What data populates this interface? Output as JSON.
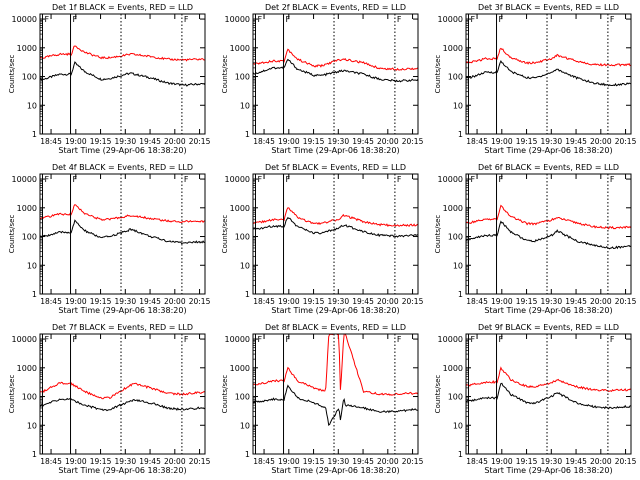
{
  "figure": {
    "xtick_labels": [
      "18:45",
      "19:00",
      "19:15",
      "19:30",
      "19:45",
      "20:00",
      "20:15"
    ],
    "ytick_labels": [
      "1",
      "10",
      "100",
      "1000",
      "10000"
    ],
    "ylabel": "Counts/sec",
    "xlabel": "Start Time (29-Apr-06 18:38:20)",
    "marker_labels": [
      "F",
      "F",
      "F"
    ],
    "colors": {
      "events": "#000000",
      "lld": "#ff0000",
      "axes": "#000000"
    }
  },
  "chart_data": [
    {
      "type": "line",
      "title": "Det 1f BLACK = Events, RED = LLD",
      "xlabel": "Start Time (29-Apr-06 18:38:20)",
      "ylabel": "Counts/sec",
      "yscale": "log",
      "ylim": [
        1,
        15000
      ],
      "xlim": [
        "18:38",
        "20:18"
      ],
      "x": [
        "18:40",
        "18:50",
        "18:57",
        "18:59",
        "19:05",
        "19:15",
        "19:20",
        "19:30",
        "19:33",
        "19:45",
        "19:55",
        "20:05",
        "20:15"
      ],
      "series": [
        {
          "name": "BLACK = Events",
          "values": [
            80,
            120,
            120,
            300,
            150,
            80,
            85,
            120,
            130,
            90,
            60,
            50,
            55
          ]
        },
        {
          "name": "RED = LLD",
          "values": [
            450,
            600,
            600,
            1200,
            700,
            450,
            450,
            550,
            600,
            500,
            400,
            380,
            400
          ]
        }
      ]
    },
    {
      "type": "line",
      "title": "Det 2f BLACK = Events, RED = LLD",
      "xlabel": "Start Time (29-Apr-06 18:38:20)",
      "ylabel": "Counts/sec",
      "yscale": "log",
      "ylim": [
        1,
        15000
      ],
      "xlim": [
        "18:38",
        "20:18"
      ],
      "x": [
        "18:40",
        "18:50",
        "18:57",
        "18:59",
        "19:05",
        "19:15",
        "19:20",
        "19:30",
        "19:33",
        "19:45",
        "19:55",
        "20:05",
        "20:15"
      ],
      "series": [
        {
          "name": "BLACK = Events",
          "values": [
            130,
            200,
            200,
            400,
            180,
            110,
            110,
            150,
            160,
            120,
            80,
            70,
            75
          ]
        },
        {
          "name": "RED = LLD",
          "values": [
            280,
            350,
            350,
            900,
            400,
            230,
            240,
            380,
            400,
            300,
            190,
            180,
            190
          ]
        }
      ]
    },
    {
      "type": "line",
      "title": "Det 3f BLACK = Events, RED = LLD",
      "xlabel": "Start Time (29-Apr-06 18:38:20)",
      "ylabel": "Counts/sec",
      "yscale": "log",
      "ylim": [
        1,
        15000
      ],
      "xlim": [
        "18:38",
        "20:18"
      ],
      "x": [
        "18:40",
        "18:50",
        "18:57",
        "18:59",
        "19:05",
        "19:15",
        "19:20",
        "19:30",
        "19:33",
        "19:45",
        "19:55",
        "20:05",
        "20:15"
      ],
      "series": [
        {
          "name": "BLACK = Events",
          "values": [
            90,
            140,
            140,
            350,
            150,
            90,
            90,
            140,
            180,
            90,
            60,
            50,
            55
          ]
        },
        {
          "name": "RED = LLD",
          "values": [
            300,
            420,
            420,
            1000,
            450,
            300,
            300,
            420,
            550,
            350,
            260,
            250,
            260
          ]
        }
      ]
    },
    {
      "type": "line",
      "title": "Det 4f BLACK = Events, RED = LLD",
      "xlabel": "Start Time (29-Apr-06 18:38:20)",
      "ylabel": "Counts/sec",
      "yscale": "log",
      "ylim": [
        1,
        15000
      ],
      "xlim": [
        "18:38",
        "20:18"
      ],
      "x": [
        "18:40",
        "18:50",
        "18:57",
        "18:59",
        "19:05",
        "19:15",
        "19:20",
        "19:30",
        "19:33",
        "19:45",
        "19:55",
        "20:05",
        "20:15"
      ],
      "series": [
        {
          "name": "BLACK = Events",
          "values": [
            100,
            140,
            140,
            350,
            160,
            90,
            100,
            150,
            180,
            100,
            70,
            60,
            65
          ]
        },
        {
          "name": "RED = LLD",
          "values": [
            450,
            600,
            600,
            1300,
            650,
            380,
            400,
            500,
            550,
            420,
            350,
            330,
            340
          ]
        }
      ]
    },
    {
      "type": "line",
      "title": "Det 5f BLACK = Events, RED = LLD",
      "xlabel": "Start Time (29-Apr-06 18:38:20)",
      "ylabel": "Counts/sec",
      "yscale": "log",
      "ylim": [
        1,
        15000
      ],
      "xlim": [
        "18:38",
        "20:18"
      ],
      "x": [
        "18:40",
        "18:50",
        "18:57",
        "18:59",
        "19:05",
        "19:15",
        "19:20",
        "19:30",
        "19:33",
        "19:45",
        "19:55",
        "20:05",
        "20:15"
      ],
      "series": [
        {
          "name": "BLACK = Events",
          "values": [
            180,
            230,
            230,
            500,
            220,
            130,
            130,
            200,
            250,
            150,
            110,
            100,
            110
          ]
        },
        {
          "name": "RED = LLD",
          "values": [
            300,
            380,
            380,
            1100,
            450,
            280,
            290,
            400,
            550,
            330,
            260,
            240,
            250
          ]
        }
      ]
    },
    {
      "type": "line",
      "title": "Det 6f BLACK = Events, RED = LLD",
      "xlabel": "Start Time (29-Apr-06 18:38:20)",
      "ylabel": "Counts/sec",
      "yscale": "log",
      "ylim": [
        1,
        15000
      ],
      "xlim": [
        "18:38",
        "20:18"
      ],
      "x": [
        "18:40",
        "18:50",
        "18:57",
        "18:59",
        "19:05",
        "19:15",
        "19:20",
        "19:30",
        "19:33",
        "19:45",
        "19:55",
        "20:05",
        "20:15"
      ],
      "series": [
        {
          "name": "BLACK = Events",
          "values": [
            80,
            110,
            110,
            350,
            150,
            70,
            70,
            110,
            160,
            70,
            50,
            40,
            45
          ]
        },
        {
          "name": "RED = LLD",
          "values": [
            300,
            400,
            400,
            1200,
            500,
            280,
            280,
            380,
            450,
            300,
            220,
            200,
            210
          ]
        }
      ]
    },
    {
      "type": "line",
      "title": "Det 7f BLACK = Events, RED = LLD",
      "xlabel": "Start Time (29-Apr-06 18:38:20)",
      "ylabel": "Counts/sec",
      "yscale": "log",
      "ylim": [
        1,
        15000
      ],
      "xlim": [
        "18:38",
        "20:18"
      ],
      "x": [
        "18:40",
        "18:50",
        "18:57",
        "19:05",
        "19:15",
        "19:20",
        "19:30",
        "19:35",
        "19:45",
        "19:55",
        "20:05",
        "20:15"
      ],
      "series": [
        {
          "name": "BLACK = Events",
          "values": [
            50,
            80,
            80,
            50,
            35,
            35,
            60,
            75,
            60,
            40,
            35,
            40
          ]
        },
        {
          "name": "RED = LLD",
          "values": [
            150,
            300,
            280,
            150,
            90,
            90,
            200,
            280,
            200,
            130,
            120,
            140
          ]
        }
      ]
    },
    {
      "type": "line",
      "title": "Det 8f BLACK = Events, RED = LLD",
      "xlabel": "Start Time (29-Apr-06 18:38:20)",
      "ylabel": "Counts/sec",
      "yscale": "log",
      "ylim": [
        1,
        15000
      ],
      "xlim": [
        "18:38",
        "20:18"
      ],
      "x": [
        "18:40",
        "18:50",
        "18:57",
        "18:59",
        "19:05",
        "19:15",
        "19:22",
        "19:24",
        "19:30",
        "19:31",
        "19:33",
        "19:34",
        "19:45",
        "19:55",
        "20:05",
        "20:15"
      ],
      "series": [
        {
          "name": "BLACK = Events",
          "values": [
            65,
            80,
            80,
            250,
            90,
            60,
            40,
            10,
            40,
            15,
            100,
            50,
            40,
            30,
            30,
            35
          ]
        },
        {
          "name": "RED = LLD",
          "values": [
            250,
            350,
            350,
            1000,
            350,
            200,
            150,
            15000,
            15000,
            120,
            15000,
            15000,
            150,
            120,
            120,
            130
          ]
        }
      ]
    },
    {
      "type": "line",
      "title": "Det 9f BLACK = Events, RED = LLD",
      "xlabel": "Start Time (29-Apr-06 18:38:20)",
      "ylabel": "Counts/sec",
      "yscale": "log",
      "ylim": [
        1,
        15000
      ],
      "xlim": [
        "18:38",
        "20:18"
      ],
      "x": [
        "18:40",
        "18:50",
        "18:57",
        "18:59",
        "19:05",
        "19:15",
        "19:20",
        "19:30",
        "19:33",
        "19:45",
        "19:55",
        "20:05",
        "20:15"
      ],
      "series": [
        {
          "name": "BLACK = Events",
          "values": [
            70,
            90,
            90,
            300,
            120,
            60,
            60,
            100,
            140,
            60,
            45,
            40,
            45
          ]
        },
        {
          "name": "RED = LLD",
          "values": [
            250,
            320,
            320,
            1000,
            400,
            220,
            220,
            300,
            380,
            220,
            170,
            160,
            170
          ]
        }
      ]
    }
  ]
}
